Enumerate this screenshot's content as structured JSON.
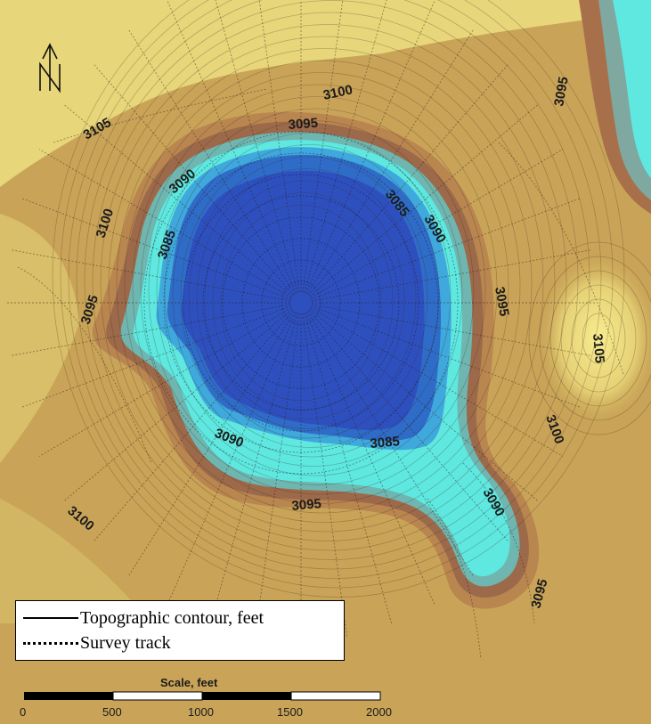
{
  "map": {
    "north_arrow_label": "N",
    "contour_labels": [
      "3105",
      "3100",
      "3095",
      "3090",
      "3085",
      "3095",
      "3100",
      "3095",
      "3090",
      "3085",
      "3100",
      "3105",
      "3090",
      "3095",
      "3100",
      "3090",
      "3085",
      "3095",
      "3095",
      "3090",
      "3105"
    ],
    "legend": {
      "topographic_contour": "Topographic contour, feet",
      "survey_track": "Survey track"
    },
    "scale": {
      "title": "Scale, feet",
      "ticks": [
        "0",
        "500",
        "1000",
        "1500",
        "2000"
      ]
    },
    "colors": {
      "land_light": "#eddc74",
      "land_mid": "#c6a152",
      "land_dark": "#a8704a",
      "shore_cyan": "#5ee8e0",
      "water_mid": "#2f8fd6",
      "water_deep": "#2e50bf"
    }
  }
}
